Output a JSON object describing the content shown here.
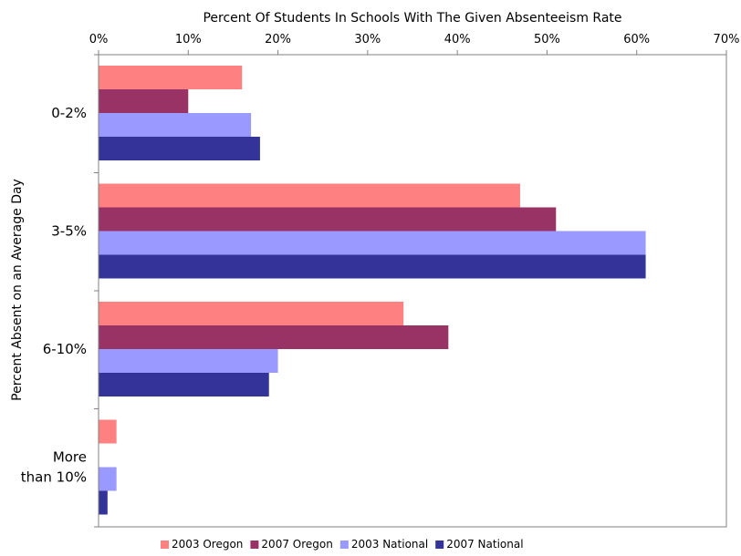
{
  "chart_data": {
    "type": "bar",
    "orientation": "horizontal",
    "title": "",
    "xlabel": "Percent Of Students In Schools With The Given Absenteeism Rate",
    "xlabel_position": "top",
    "ylabel": "Percent Absent on an Average Day",
    "xlim": [
      0,
      70
    ],
    "x_ticks": [
      "0%",
      "10%",
      "20%",
      "30%",
      "40%",
      "50%",
      "60%",
      "70%"
    ],
    "categories": [
      [
        "0-2%"
      ],
      [
        "3-5%"
      ],
      [
        "6-10%"
      ],
      [
        "More",
        "than 10%"
      ]
    ],
    "series": [
      {
        "name": "2003 Oregon",
        "color": "#ff8080",
        "values": [
          16,
          47,
          34,
          2
        ]
      },
      {
        "name": "2007 Oregon",
        "color": "#993366",
        "values": [
          10,
          51,
          39,
          0
        ]
      },
      {
        "name": "2003 National",
        "color": "#9999ff",
        "values": [
          17,
          61,
          20,
          2
        ]
      },
      {
        "name": "2007 National",
        "color": "#333399",
        "values": [
          18,
          61,
          19,
          1
        ]
      }
    ],
    "grid": false,
    "legend": "bottom",
    "plot_border": true
  }
}
